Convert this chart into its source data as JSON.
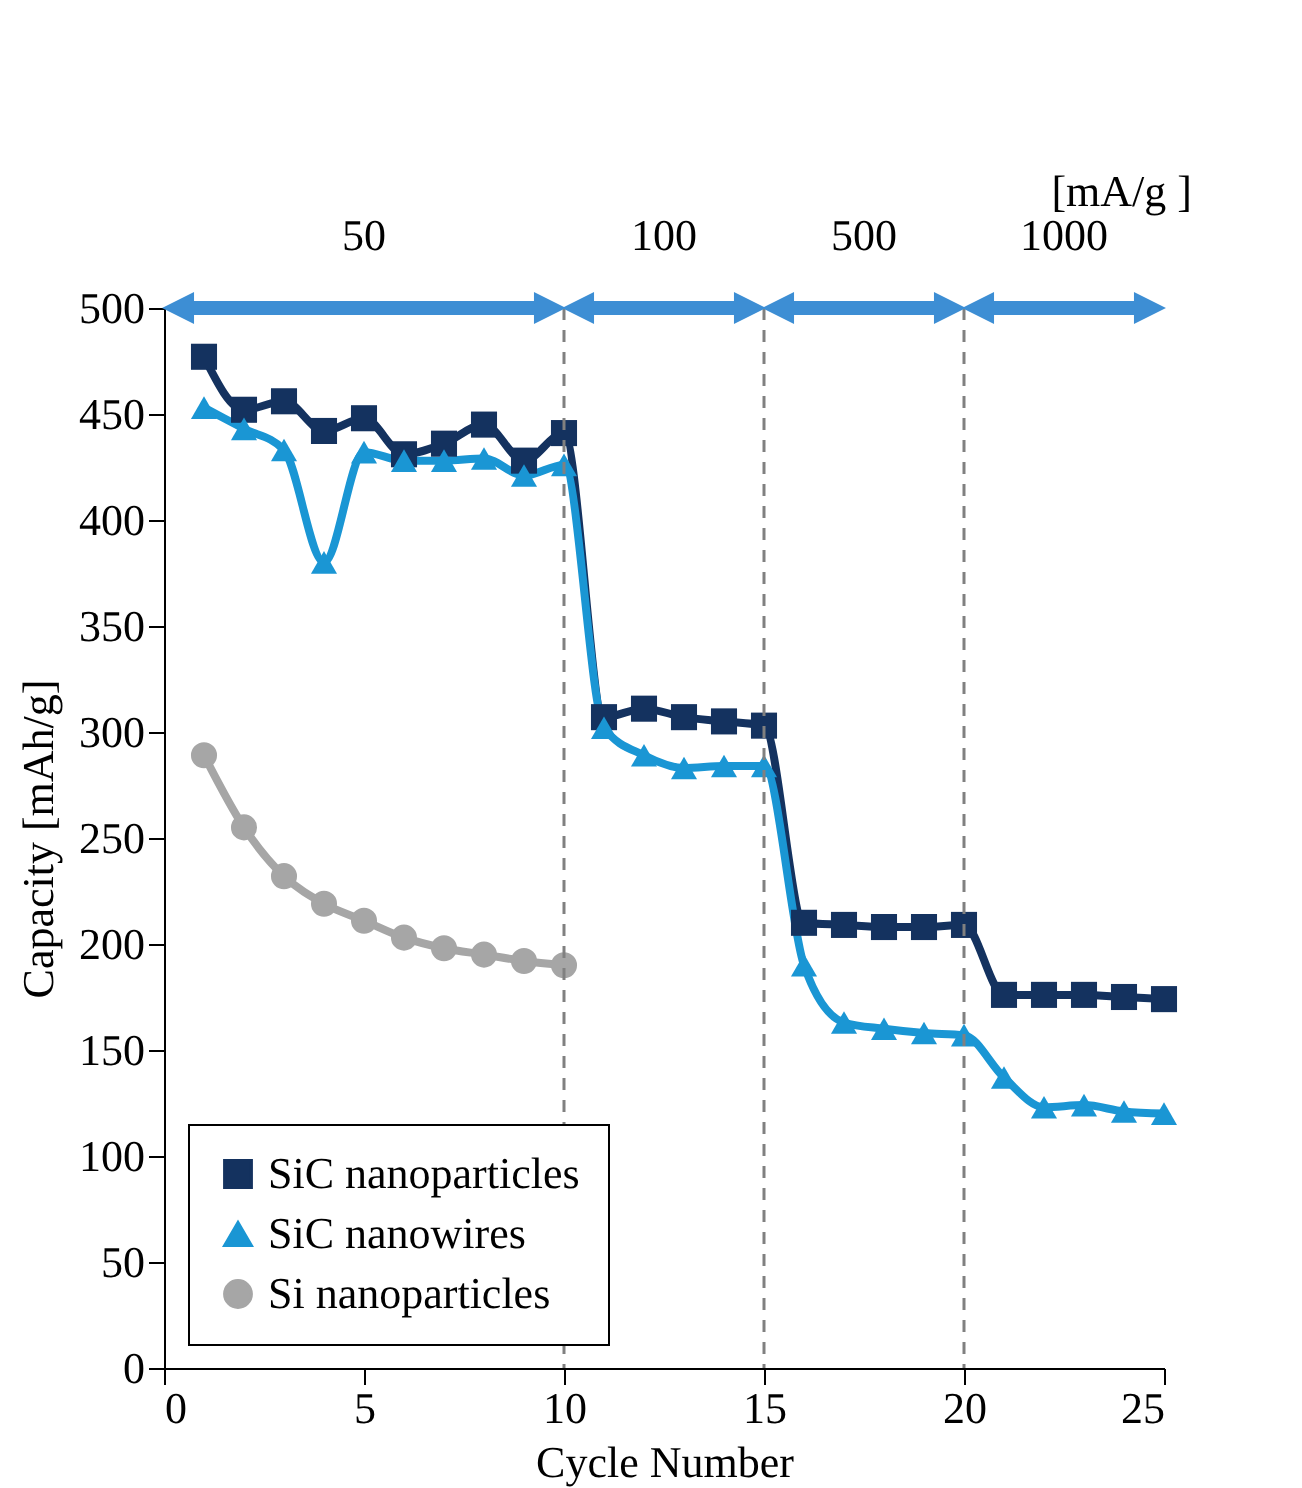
{
  "chart_data": {
    "type": "line",
    "xlabel": "Cycle Number",
    "ylabel": "Capacity [mAh/g]",
    "x": [
      1,
      2,
      3,
      4,
      5,
      6,
      7,
      8,
      9,
      10,
      11,
      12,
      13,
      14,
      15,
      16,
      17,
      18,
      19,
      20,
      21,
      22,
      23,
      24,
      25
    ],
    "series": [
      {
        "name": "SiC nanoparticles",
        "color": "#14325f",
        "marker": "square",
        "values": [
          477,
          452,
          456,
          442,
          448,
          431,
          436,
          445,
          428,
          441,
          307,
          311,
          307,
          305,
          303,
          210,
          209,
          208,
          208,
          209,
          176,
          176,
          176,
          175,
          174
        ]
      },
      {
        "name": "SiC nanowires",
        "color": "#1a96d4",
        "marker": "triangle",
        "values": [
          453,
          443,
          433,
          380,
          432,
          428,
          428,
          429,
          421,
          426,
          302,
          289,
          283,
          284,
          284,
          190,
          163,
          160,
          158,
          157,
          137,
          123,
          124,
          121,
          120
        ]
      },
      {
        "name": "Si nanoparticles",
        "color": "#a6a6a6",
        "marker": "circle",
        "x": [
          1,
          2,
          3,
          4,
          5,
          6,
          7,
          8,
          9,
          10
        ],
        "values": [
          289,
          255,
          232,
          219,
          211,
          203,
          198,
          195,
          192,
          190
        ]
      }
    ],
    "xlim": [
      0,
      25
    ],
    "xticks": [
      0,
      5,
      10,
      15,
      20,
      25
    ],
    "ylim": [
      0,
      500
    ],
    "yticks": [
      0,
      50,
      100,
      150,
      200,
      250,
      300,
      350,
      400,
      450,
      500
    ],
    "ref_lines": [
      {
        "axis": "x",
        "value": 10,
        "color": "#808080",
        "line_style": "dashed"
      },
      {
        "axis": "x",
        "value": 15,
        "color": "#808080",
        "line_style": "dashed"
      },
      {
        "axis": "x",
        "value": 20,
        "color": "#808080",
        "line_style": "dashed"
      }
    ],
    "annotations": [
      "50",
      "100",
      "500",
      "1000",
      "[mA/g ]"
    ],
    "legend": "bottom left",
    "grid": false,
    "line_style": "solid"
  }
}
